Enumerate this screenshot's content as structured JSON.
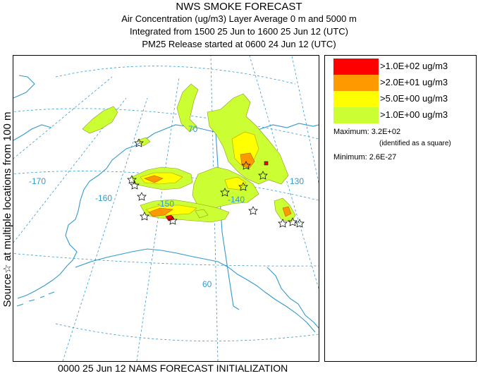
{
  "title": {
    "main": "NWS SMOKE FORECAST",
    "line1": "Air Concentration (ug/m3) Layer Average     0 m and  5000 m",
    "line2": "Integrated from 1500 25 Jun to 1600 25 Jun 12 (UTC)",
    "line3": "PM25 Release started at 0600 24 Jun 12 (UTC)"
  },
  "side_label": "Source☆ at multiple locations    from   100 m",
  "footer": "0000 25 Jun 12 NAMS FORECAST INITIALIZATION",
  "legend": {
    "items": [
      {
        "label": ">1.0E+02 ug/m3",
        "color": "#ff0000"
      },
      {
        "label": ">2.0E+01 ug/m3",
        "color": "#ff9900"
      },
      {
        "label": ">5.0E+00 ug/m3",
        "color": "#ffff00"
      },
      {
        "label": ">1.0E+00 ug/m3",
        "color": "#ccff33"
      }
    ],
    "maximum": "Maximum: 3.2E+02",
    "maximum_note": "(identified as a square)",
    "minimum": "Minimum: 2.6E-27"
  },
  "map": {
    "graticule_labels": {
      "lat_70": "70",
      "lat_60": "60",
      "lon_170": "-170",
      "lon_160": "-160",
      "lon_150": "-150",
      "lon_140": "-140",
      "lon_130": "130"
    },
    "colors": {
      "graticule": "#3399cc",
      "coast": "#3399cc",
      "border": "#3399cc",
      "smoke_low": "#ccff33",
      "smoke_mid": "#ffff00",
      "smoke_high": "#ff9900",
      "smoke_max": "#ff0000"
    }
  }
}
